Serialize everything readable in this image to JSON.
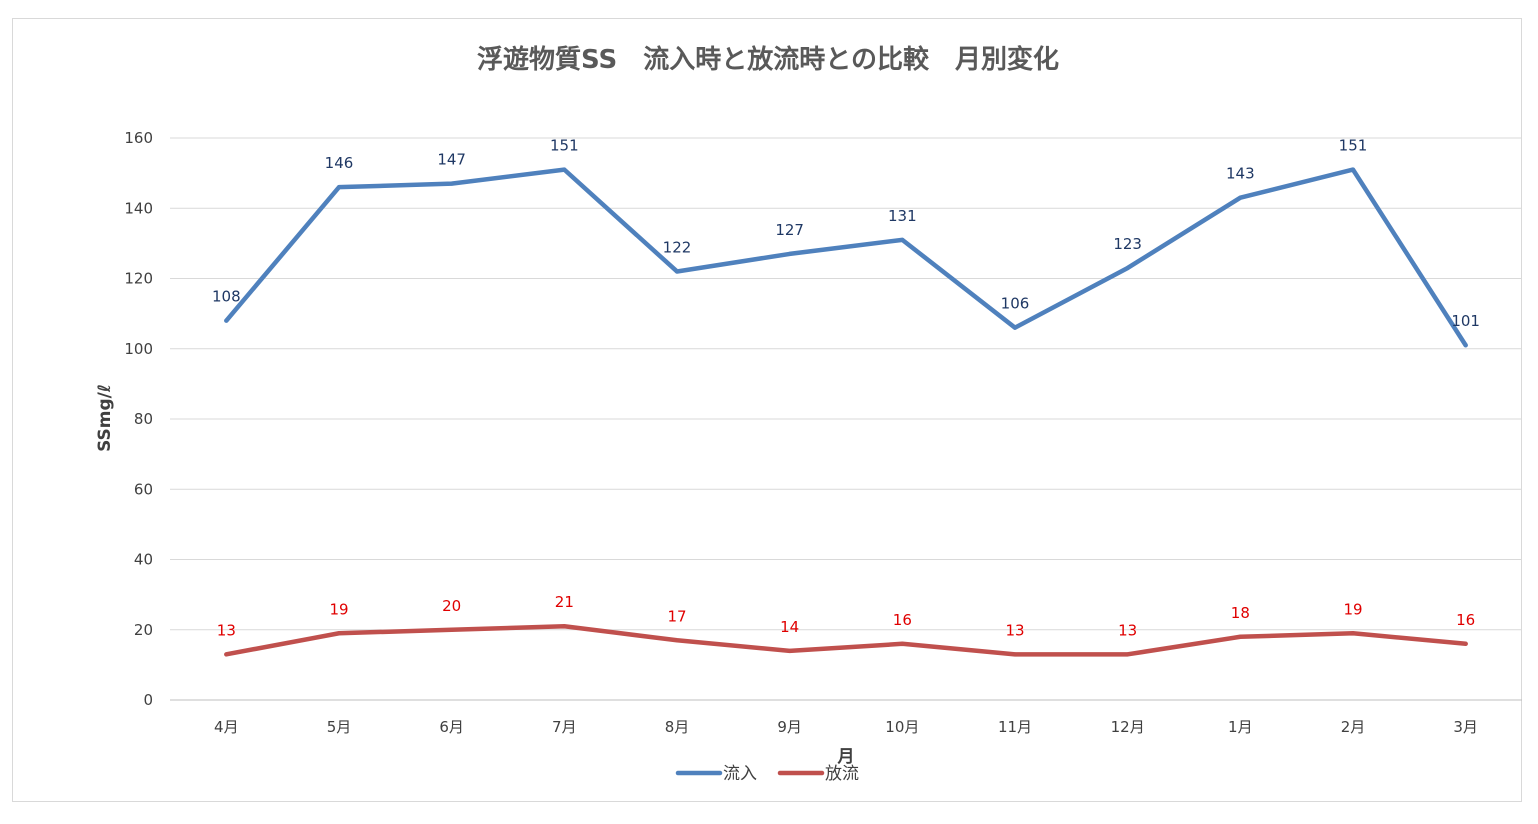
{
  "chart_data": {
    "type": "line",
    "title": "浮遊物質SS　流入時と放流時との比較　月別変化",
    "xlabel": "月",
    "ylabel": "SSmg/ℓ",
    "ylim": [
      0,
      160
    ],
    "yticks": [
      0,
      20,
      40,
      60,
      80,
      100,
      120,
      140,
      160
    ],
    "categories": [
      "4月",
      "5月",
      "6月",
      "7月",
      "8月",
      "9月",
      "10月",
      "11月",
      "12月",
      "1月",
      "2月",
      "3月"
    ],
    "series": [
      {
        "name": "流入",
        "color": "#4f81bd",
        "label_color": "#1f3864",
        "values": [
          108,
          146,
          147,
          151,
          122,
          127,
          131,
          106,
          123,
          143,
          151,
          101
        ]
      },
      {
        "name": "放流",
        "color": "#c0504d",
        "label_color": "#e00000",
        "values": [
          13,
          19,
          20,
          21,
          17,
          14,
          16,
          13,
          13,
          18,
          19,
          16
        ]
      }
    ],
    "grid": true,
    "legend": "bottom"
  }
}
